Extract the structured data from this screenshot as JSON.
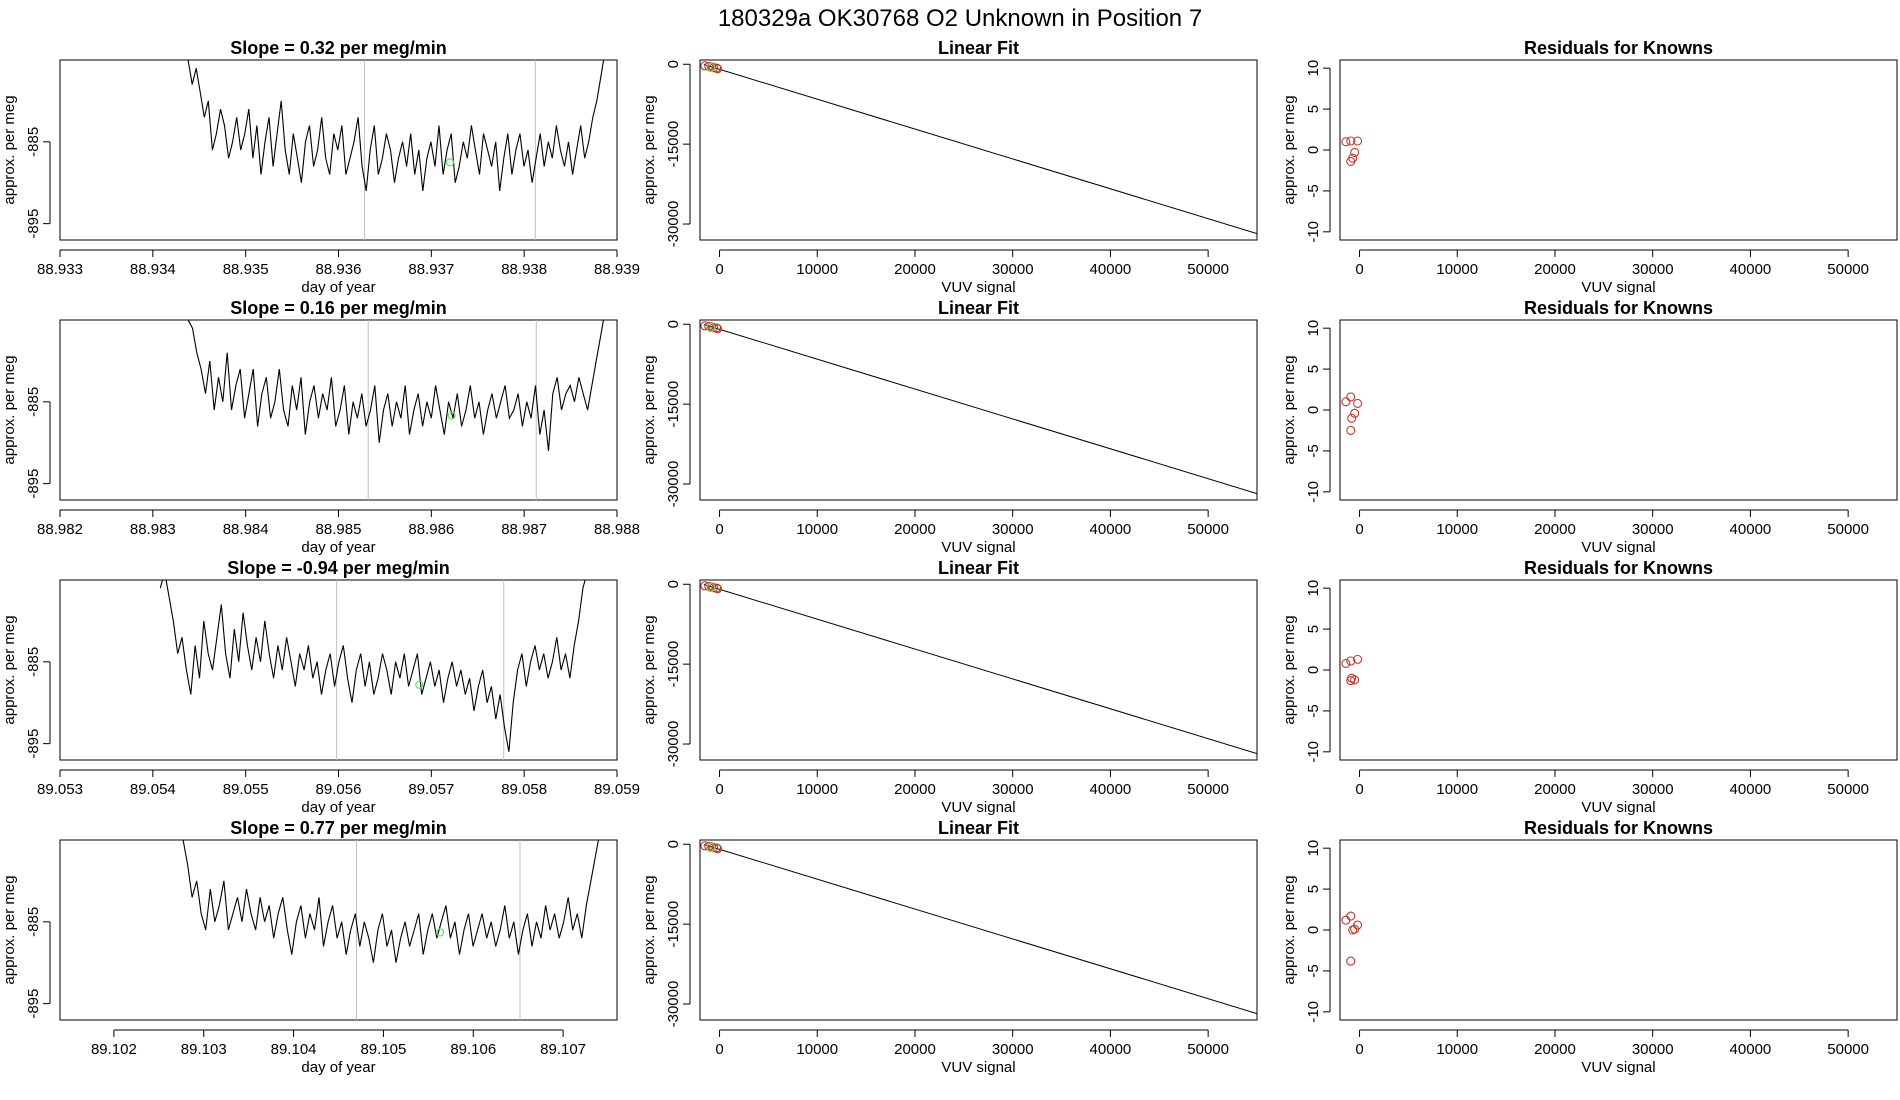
{
  "page": {
    "title": "180329a      OK30768    O2 Unknown in Position  7"
  },
  "colors": {
    "series_line": "#000000",
    "vertical_guides": "#bfbfbf",
    "unknown_marker": "#66e066",
    "known_marker": "#c0392b",
    "fit_line": "#000000"
  },
  "chart_data": [
    {
      "type": "line",
      "row": 1,
      "title": "Slope =  0.32  per meg/min",
      "xlabel": "day of year",
      "ylabel": "approx. per meg",
      "xlim": [
        88.933,
        88.939
      ],
      "ylim": [
        -897,
        -875
      ],
      "xticks": [
        "88.933",
        "88.934",
        "88.935",
        "88.936",
        "88.937",
        "88.938",
        "88.939"
      ],
      "xtick_values": [
        88.933,
        88.934,
        88.935,
        88.936,
        88.937,
        88.938,
        88.939
      ],
      "yticks": [
        "-885",
        "-895"
      ],
      "ytick_values": [
        -885,
        -895
      ],
      "x_start": 88.93438,
      "x_end": 88.93887,
      "y_values": [
        -875,
        -878,
        -876,
        -879,
        -882,
        -880,
        -886,
        -884,
        -881,
        -883,
        -887,
        -885,
        -882,
        -886,
        -884,
        -881,
        -887,
        -883,
        -889,
        -885,
        -882,
        -888,
        -884,
        -880,
        -886,
        -889,
        -884,
        -887,
        -890,
        -885,
        -883,
        -888,
        -886,
        -882,
        -887,
        -889,
        -884,
        -886,
        -883,
        -889,
        -887,
        -885,
        -882,
        -888,
        -891,
        -886,
        -883,
        -889,
        -887,
        -884,
        -886,
        -890,
        -887,
        -885,
        -888,
        -884,
        -889,
        -886,
        -891,
        -887,
        -885,
        -888,
        -883,
        -889,
        -886,
        -884,
        -890,
        -888,
        -885,
        -887,
        -883,
        -886,
        -889,
        -884,
        -886,
        -888,
        -885,
        -891,
        -887,
        -884,
        -889,
        -886,
        -884,
        -888,
        -886,
        -890,
        -887,
        -884,
        -888,
        -885,
        -887,
        -883,
        -886,
        -888,
        -885,
        -889,
        -886,
        -883,
        -887,
        -885,
        -882,
        -880,
        -877,
        -874
      ],
      "vlines": [
        88.93628,
        88.93812
      ],
      "unknown_point": {
        "x": 88.9372,
        "y": -887.5
      }
    },
    {
      "type": "line",
      "row": 2,
      "title": "Slope =  0.16  per meg/min",
      "xlabel": "day of year",
      "ylabel": "approx. per meg",
      "xlim": [
        88.982,
        88.988
      ],
      "ylim": [
        -897,
        -875
      ],
      "xticks": [
        "88.982",
        "88.983",
        "88.984",
        "88.985",
        "88.986",
        "88.987",
        "88.988"
      ],
      "xtick_values": [
        88.982,
        88.983,
        88.984,
        88.985,
        88.986,
        88.987,
        88.988
      ],
      "yticks": [
        "-885",
        "-895"
      ],
      "ytick_values": [
        -885,
        -895
      ],
      "x_start": 88.98338,
      "x_end": 88.98787,
      "y_values": [
        -875,
        -876,
        -879,
        -881,
        -884,
        -880,
        -886,
        -882,
        -885,
        -879,
        -886,
        -883,
        -881,
        -887,
        -884,
        -881,
        -888,
        -884,
        -882,
        -887,
        -885,
        -881,
        -886,
        -888,
        -883,
        -886,
        -882,
        -889,
        -885,
        -883,
        -887,
        -884,
        -886,
        -882,
        -888,
        -886,
        -883,
        -889,
        -885,
        -887,
        -884,
        -888,
        -886,
        -883,
        -890,
        -886,
        -884,
        -888,
        -885,
        -887,
        -883,
        -889,
        -886,
        -884,
        -888,
        -885,
        -887,
        -883,
        -886,
        -889,
        -885,
        -887,
        -884,
        -888,
        -886,
        -883,
        -887,
        -885,
        -889,
        -886,
        -884,
        -887,
        -885,
        -883,
        -887,
        -886,
        -884,
        -888,
        -885,
        -887,
        -883,
        -889,
        -886,
        -891,
        -884,
        -882,
        -886,
        -884,
        -883,
        -885,
        -882,
        -884,
        -886,
        -883,
        -880,
        -877,
        -874
      ],
      "vlines": [
        88.98532,
        88.98713
      ],
      "unknown_point": {
        "x": 88.98622,
        "y": -886.7
      }
    },
    {
      "type": "line",
      "row": 3,
      "title": "Slope =  -0.94  per meg/min",
      "xlabel": "day of year",
      "ylabel": "approx. per meg",
      "xlim": [
        89.053,
        89.059
      ],
      "ylim": [
        -897,
        -875
      ],
      "xticks": [
        "89.053",
        "89.054",
        "89.055",
        "89.056",
        "89.057",
        "89.058",
        "89.059"
      ],
      "xtick_values": [
        89.053,
        89.054,
        89.055,
        89.056,
        89.057,
        89.058,
        89.059
      ],
      "yticks": [
        "-885",
        "-895"
      ],
      "ytick_values": [
        -885,
        -895
      ],
      "x_start": 89.05408,
      "x_end": 89.05868,
      "y_values": [
        -876,
        -874,
        -877,
        -880,
        -884,
        -882,
        -886,
        -889,
        -883,
        -887,
        -880,
        -884,
        -886,
        -882,
        -878,
        -884,
        -887,
        -881,
        -885,
        -879,
        -883,
        -886,
        -882,
        -885,
        -880,
        -884,
        -887,
        -883,
        -886,
        -882,
        -885,
        -888,
        -884,
        -886,
        -883,
        -887,
        -885,
        -889,
        -886,
        -884,
        -888,
        -885,
        -883,
        -887,
        -890,
        -886,
        -884,
        -888,
        -885,
        -889,
        -887,
        -884,
        -886,
        -889,
        -885,
        -887,
        -884,
        -888,
        -886,
        -884,
        -889,
        -887,
        -885,
        -888,
        -886,
        -890,
        -887,
        -885,
        -888,
        -886,
        -889,
        -887,
        -891,
        -888,
        -886,
        -890,
        -888,
        -892,
        -889,
        -893,
        -896,
        -890,
        -886,
        -884,
        -888,
        -885,
        -883,
        -886,
        -884,
        -887,
        -885,
        -882,
        -886,
        -884,
        -887,
        -883,
        -880,
        -876,
        -874
      ],
      "vlines": [
        89.05598,
        89.05778
      ],
      "unknown_point": {
        "x": 89.05687,
        "y": -887.8
      }
    },
    {
      "type": "line",
      "row": 4,
      "title": "Slope =  0.77  per meg/min",
      "xlabel": "day of year",
      "ylabel": "approx. per meg",
      "xlim": [
        89.1014,
        89.1076
      ],
      "ylim": [
        -897,
        -875
      ],
      "xticks": [
        "89.102",
        "89.103",
        "89.104",
        "89.105",
        "89.106",
        "89.107"
      ],
      "xtick_values": [
        89.102,
        89.103,
        89.104,
        89.105,
        89.106,
        89.107
      ],
      "yticks": [
        "-885",
        "-895"
      ],
      "ytick_values": [
        -885,
        -895
      ],
      "x_start": 89.10277,
      "x_end": 89.10741,
      "y_values": [
        -875,
        -878,
        -882,
        -880,
        -884,
        -886,
        -881,
        -885,
        -883,
        -880,
        -886,
        -884,
        -882,
        -885,
        -881,
        -884,
        -886,
        -882,
        -885,
        -883,
        -887,
        -884,
        -882,
        -886,
        -889,
        -885,
        -883,
        -887,
        -884,
        -886,
        -882,
        -888,
        -885,
        -883,
        -887,
        -885,
        -889,
        -886,
        -884,
        -888,
        -885,
        -887,
        -890,
        -886,
        -884,
        -888,
        -886,
        -890,
        -887,
        -885,
        -888,
        -886,
        -884,
        -889,
        -886,
        -884,
        -887,
        -885,
        -883,
        -887,
        -885,
        -889,
        -886,
        -884,
        -888,
        -886,
        -884,
        -887,
        -885,
        -888,
        -886,
        -883,
        -887,
        -885,
        -889,
        -886,
        -884,
        -888,
        -885,
        -887,
        -883,
        -886,
        -884,
        -887,
        -885,
        -882,
        -886,
        -884,
        -887,
        -883,
        -880,
        -877,
        -874
      ],
      "vlines": [
        89.1047,
        89.10652
      ],
      "unknown_point": {
        "x": 89.10563,
        "y": -886.3
      }
    },
    {
      "type": "scatter",
      "row": 1,
      "title": "Linear Fit",
      "xlabel": "VUV signal",
      "ylabel": "approx. per meg",
      "xlim": [
        -2000,
        55000
      ],
      "ylim": [
        -33000,
        800
      ],
      "xticks": [
        "0",
        "10000",
        "20000",
        "30000",
        "40000",
        "50000"
      ],
      "xtick_values": [
        0,
        10000,
        20000,
        30000,
        40000,
        50000
      ],
      "yticks": [
        "0",
        "-15000",
        "-30000"
      ],
      "ytick_values": [
        0,
        -15000,
        -30000
      ],
      "fit_line": {
        "x": [
          -1600,
          55000
        ],
        "y": [
          -50,
          -31800
        ]
      },
      "known_points": {
        "x": [
          -1500,
          -1100,
          -800,
          -600,
          -300,
          -200
        ],
        "y": [
          -300,
          -400,
          -500,
          -650,
          -700,
          -850
        ]
      },
      "unknown_points": {
        "x": [
          -900
        ],
        "y": [
          -600
        ]
      }
    },
    {
      "type": "scatter",
      "row": 2,
      "title": "Linear Fit",
      "xlabel": "VUV signal",
      "ylabel": "approx. per meg",
      "xlim": [
        -2000,
        55000
      ],
      "ylim": [
        -33000,
        800
      ],
      "xticks": [
        "0",
        "10000",
        "20000",
        "30000",
        "40000",
        "50000"
      ],
      "xtick_values": [
        0,
        10000,
        20000,
        30000,
        40000,
        50000
      ],
      "yticks": [
        "0",
        "-15000",
        "-30000"
      ],
      "ytick_values": [
        0,
        -15000,
        -30000
      ],
      "fit_line": {
        "x": [
          -1600,
          55000
        ],
        "y": [
          -50,
          -31800
        ]
      },
      "known_points": {
        "x": [
          -1500,
          -1100,
          -800,
          -600,
          -300,
          -200
        ],
        "y": [
          -300,
          -400,
          -500,
          -650,
          -700,
          -850
        ]
      },
      "unknown_points": {
        "x": [
          -900
        ],
        "y": [
          -600
        ]
      }
    },
    {
      "type": "scatter",
      "row": 3,
      "title": "Linear Fit",
      "xlabel": "VUV signal",
      "ylabel": "approx. per meg",
      "xlim": [
        -2000,
        55000
      ],
      "ylim": [
        -33000,
        800
      ],
      "xticks": [
        "0",
        "10000",
        "20000",
        "30000",
        "40000",
        "50000"
      ],
      "xtick_values": [
        0,
        10000,
        20000,
        30000,
        40000,
        50000
      ],
      "yticks": [
        "0",
        "-15000",
        "-30000"
      ],
      "ytick_values": [
        0,
        -15000,
        -30000
      ],
      "fit_line": {
        "x": [
          -1600,
          55000
        ],
        "y": [
          -50,
          -31800
        ]
      },
      "known_points": {
        "x": [
          -1500,
          -1100,
          -800,
          -600,
          -300,
          -200
        ],
        "y": [
          -300,
          -400,
          -500,
          -650,
          -700,
          -850
        ]
      },
      "unknown_points": {
        "x": [
          -900
        ],
        "y": [
          -600
        ]
      }
    },
    {
      "type": "scatter",
      "row": 4,
      "title": "Linear Fit",
      "xlabel": "VUV signal",
      "ylabel": "approx. per meg",
      "xlim": [
        -2000,
        55000
      ],
      "ylim": [
        -33000,
        800
      ],
      "xticks": [
        "0",
        "10000",
        "20000",
        "30000",
        "40000",
        "50000"
      ],
      "xtick_values": [
        0,
        10000,
        20000,
        30000,
        40000,
        50000
      ],
      "yticks": [
        "0",
        "-15000",
        "-30000"
      ],
      "ytick_values": [
        0,
        -15000,
        -30000
      ],
      "fit_line": {
        "x": [
          -1600,
          55000
        ],
        "y": [
          -50,
          -31800
        ]
      },
      "known_points": {
        "x": [
          -1500,
          -1100,
          -800,
          -600,
          -300,
          -200
        ],
        "y": [
          -300,
          -400,
          -500,
          -650,
          -700,
          -850
        ]
      },
      "unknown_points": {
        "x": [
          -900
        ],
        "y": [
          -600
        ]
      }
    },
    {
      "type": "scatter",
      "row": 1,
      "title": "Residuals for Knowns",
      "xlabel": "VUV signal",
      "ylabel": "approx. per meg",
      "xlim": [
        -2000,
        55000
      ],
      "ylim": [
        -11,
        11
      ],
      "xticks": [
        "0",
        "10000",
        "20000",
        "30000",
        "40000",
        "50000"
      ],
      "xtick_values": [
        0,
        10000,
        20000,
        30000,
        40000,
        50000
      ],
      "yticks": [
        "10",
        "5",
        "0",
        "-5",
        "-10"
      ],
      "ytick_values": [
        10,
        5,
        0,
        -5,
        -10
      ],
      "known_points": {
        "x": [
          -1400,
          -900,
          -200,
          -500,
          -700,
          -900
        ],
        "y": [
          1.0,
          1.1,
          1.1,
          -0.3,
          -1.0,
          -1.4
        ]
      }
    },
    {
      "type": "scatter",
      "row": 2,
      "title": "Residuals for Knowns",
      "xlabel": "VUV signal",
      "ylabel": "approx. per meg",
      "xlim": [
        -2000,
        55000
      ],
      "ylim": [
        -11,
        11
      ],
      "xticks": [
        "0",
        "10000",
        "20000",
        "30000",
        "40000",
        "50000"
      ],
      "xtick_values": [
        0,
        10000,
        20000,
        30000,
        40000,
        50000
      ],
      "yticks": [
        "10",
        "5",
        "0",
        "-5",
        "-10"
      ],
      "ytick_values": [
        10,
        5,
        0,
        -5,
        -10
      ],
      "known_points": {
        "x": [
          -1400,
          -900,
          -200,
          -500,
          -800,
          -900
        ],
        "y": [
          1.0,
          1.6,
          0.8,
          -0.4,
          -1.0,
          -2.5
        ]
      }
    },
    {
      "type": "scatter",
      "row": 3,
      "title": "Residuals for Knowns",
      "xlabel": "VUV signal",
      "ylabel": "approx. per meg",
      "xlim": [
        -2000,
        55000
      ],
      "ylim": [
        -11,
        11
      ],
      "xticks": [
        "0",
        "10000",
        "20000",
        "30000",
        "40000",
        "50000"
      ],
      "xtick_values": [
        0,
        10000,
        20000,
        30000,
        40000,
        50000
      ],
      "yticks": [
        "10",
        "5",
        "0",
        "-5",
        "-10"
      ],
      "ytick_values": [
        10,
        5,
        0,
        -5,
        -10
      ],
      "known_points": {
        "x": [
          -1400,
          -900,
          -200,
          -500,
          -800,
          -900
        ],
        "y": [
          0.8,
          1.1,
          1.3,
          -1.2,
          -1.0,
          -1.3
        ]
      }
    },
    {
      "type": "scatter",
      "row": 4,
      "title": "Residuals for Knowns",
      "xlabel": "VUV signal",
      "ylabel": "approx. per meg",
      "xlim": [
        -2000,
        55000
      ],
      "ylim": [
        -11,
        11
      ],
      "xticks": [
        "0",
        "10000",
        "20000",
        "30000",
        "40000",
        "50000"
      ],
      "xtick_values": [
        0,
        10000,
        20000,
        30000,
        40000,
        50000
      ],
      "yticks": [
        "10",
        "5",
        "0",
        "-5",
        "-10"
      ],
      "ytick_values": [
        10,
        5,
        0,
        -5,
        -10
      ],
      "known_points": {
        "x": [
          -1400,
          -900,
          -200,
          -500,
          -700,
          -900
        ],
        "y": [
          1.2,
          1.7,
          0.6,
          0.1,
          0.0,
          -3.8
        ]
      }
    }
  ]
}
